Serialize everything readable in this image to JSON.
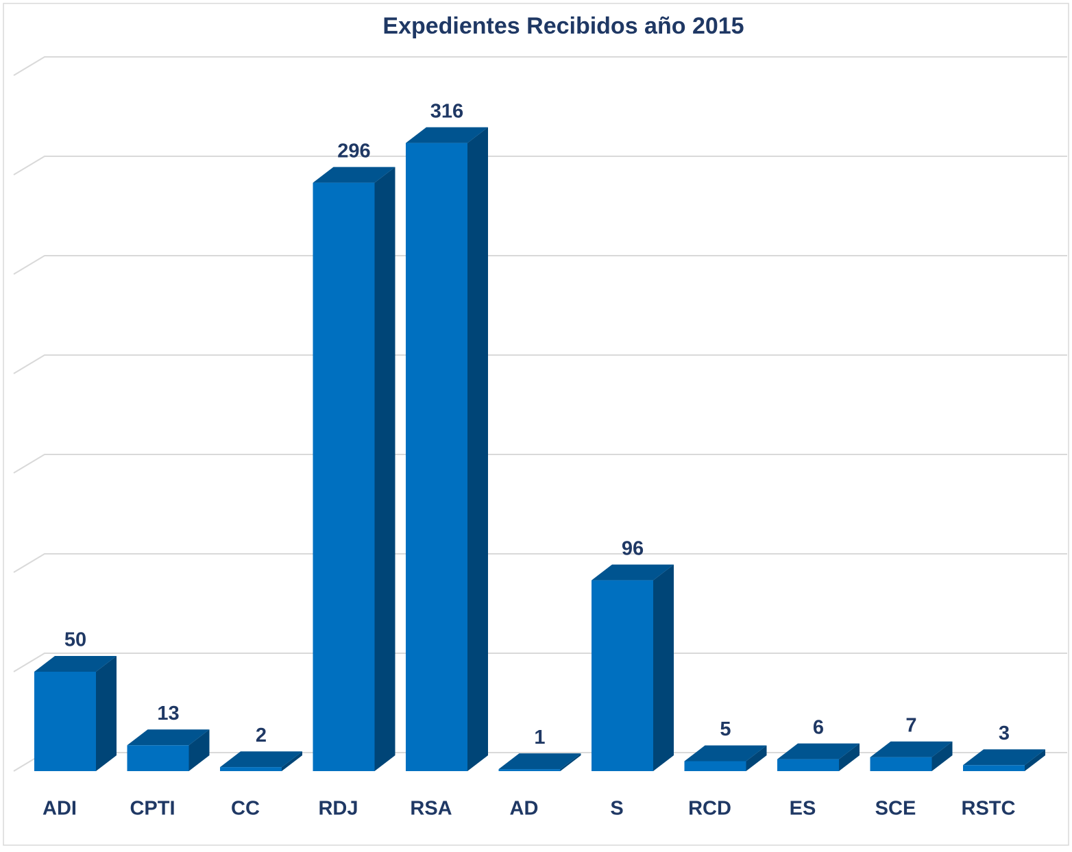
{
  "chart_data": {
    "type": "bar3d",
    "title": "Expedientes Recibidos año 2015",
    "categories": [
      "ADI",
      "CPTI",
      "CC",
      "RDJ",
      "RSA",
      "AD",
      "S",
      "RCD",
      "ES",
      "SCE",
      "RSTC"
    ],
    "values": [
      50,
      13,
      2,
      296,
      316,
      1,
      96,
      5,
      6,
      7,
      3
    ],
    "color": "#0070c0",
    "ylim": [
      0,
      350
    ],
    "yticks": [
      0,
      50,
      100,
      150,
      200,
      250,
      300,
      350
    ],
    "grid": true
  }
}
